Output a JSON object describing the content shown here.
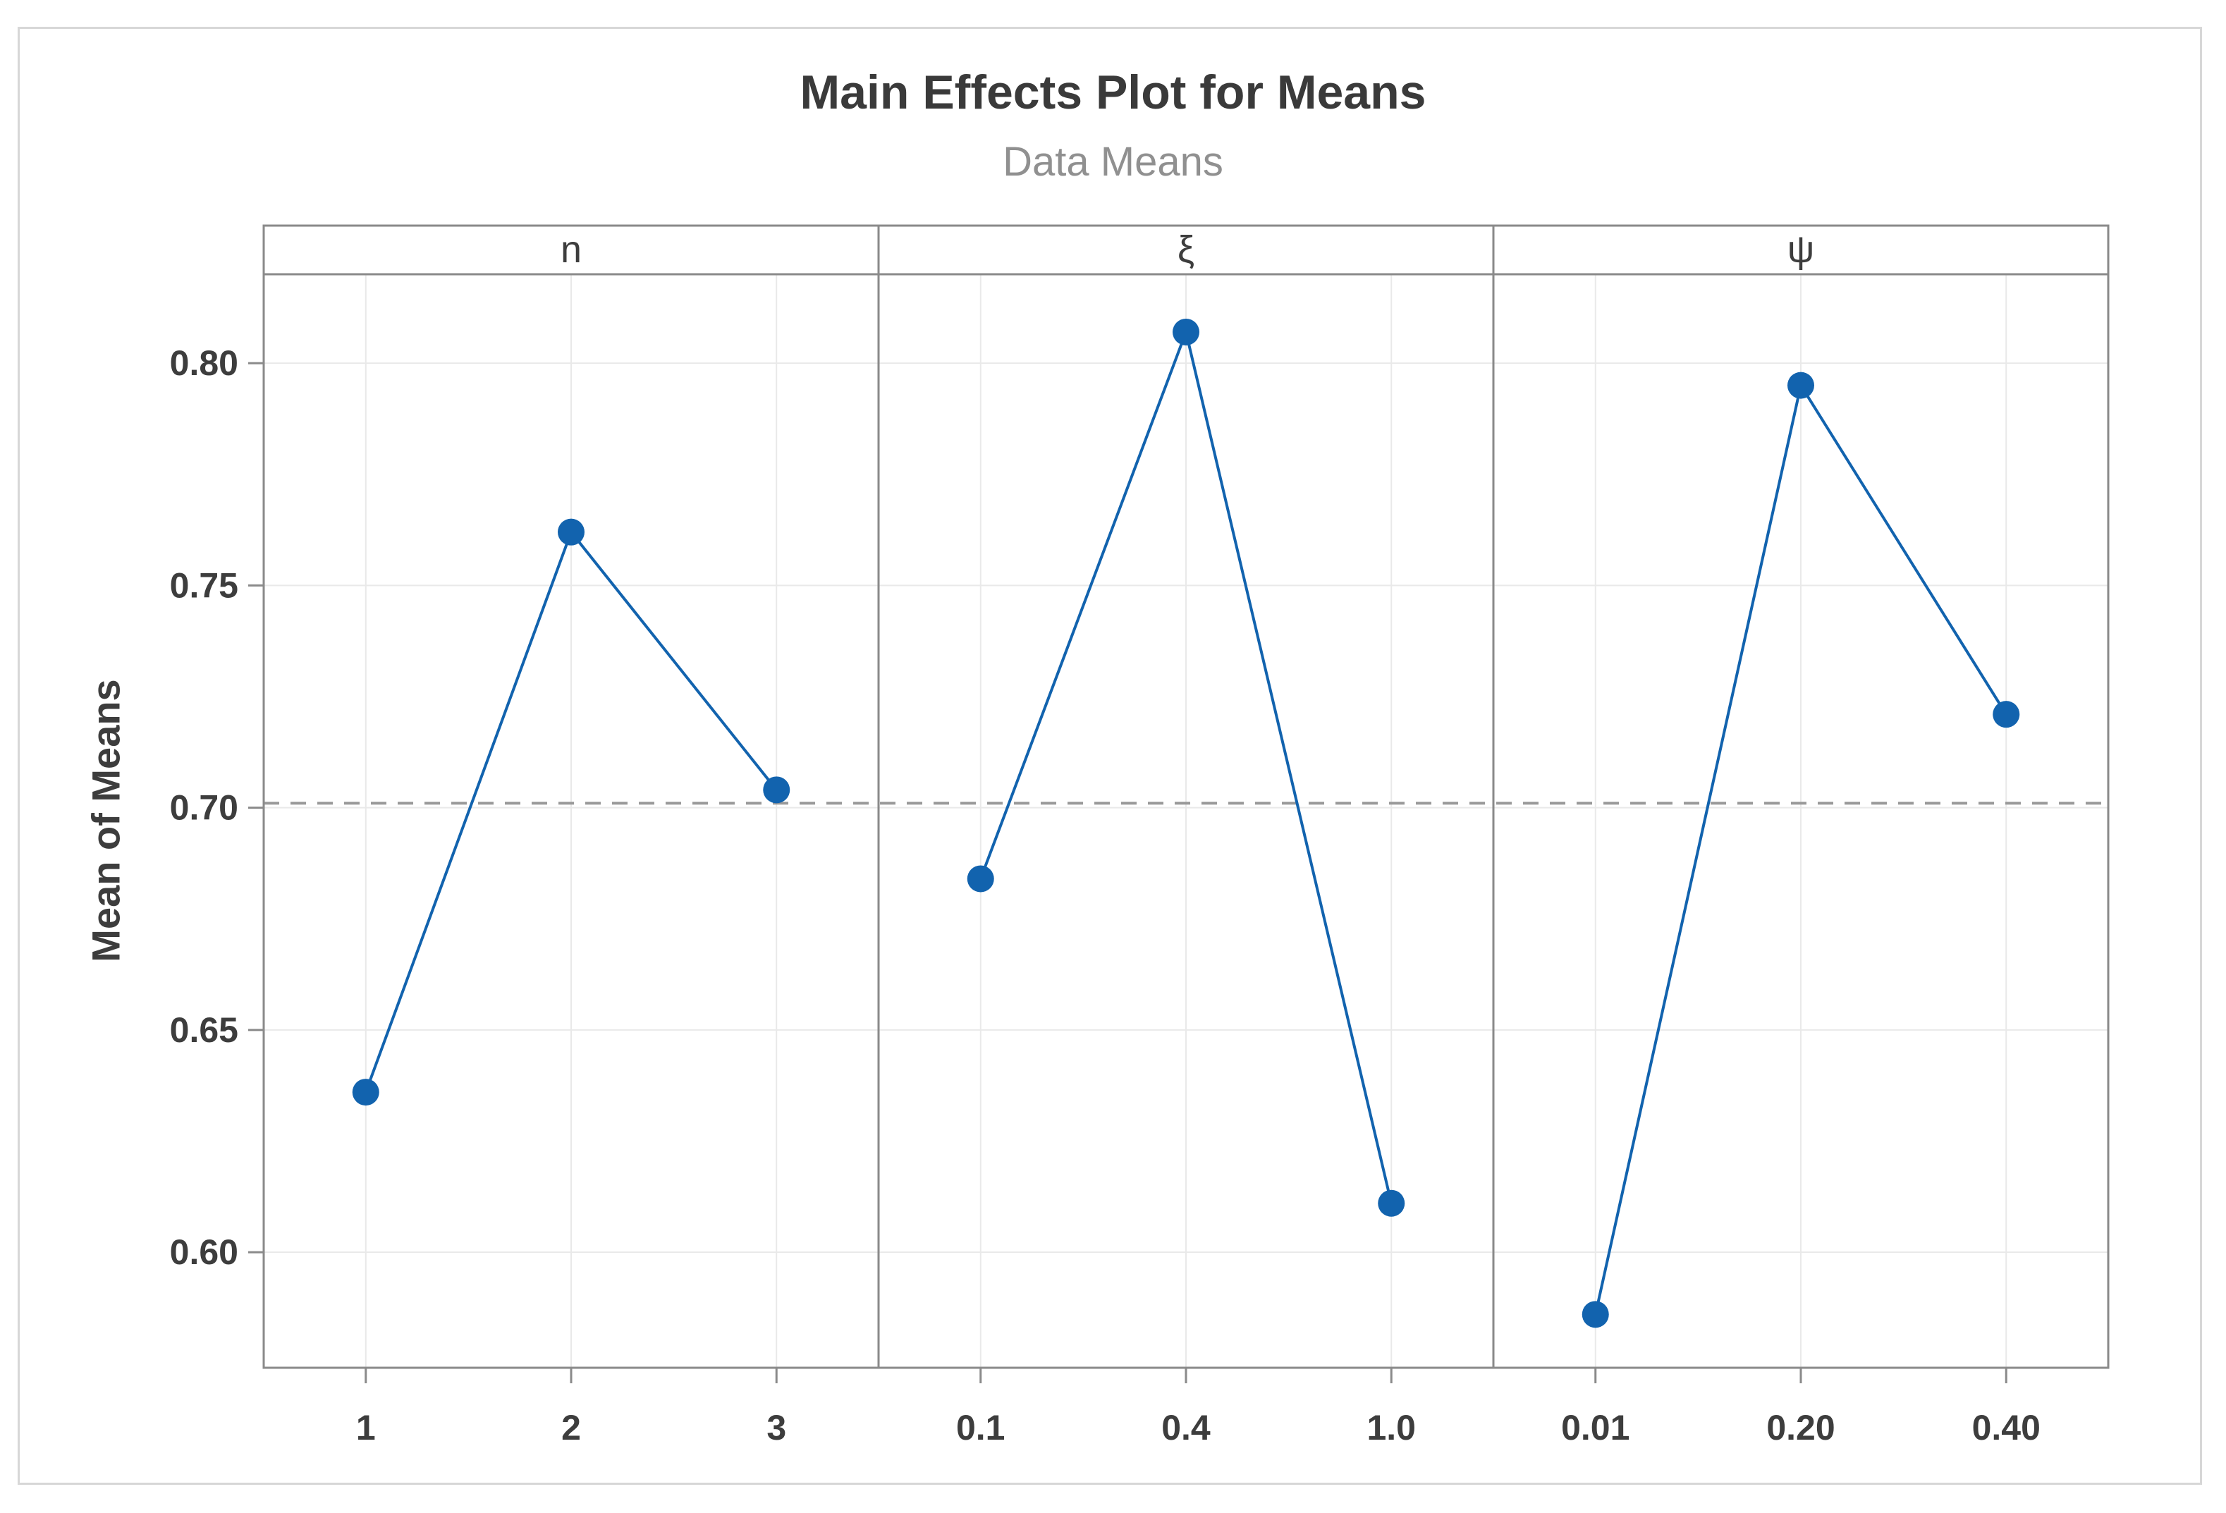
{
  "title": "Main Effects Plot for Means",
  "subtitle": "Data Means",
  "chart_data": {
    "type": "line",
    "description": "Main effects plot with three factor panels; each panel shows the mean response at each factor level, with a dashed horizontal reference line at the overall mean.",
    "ylabel": "Mean of Means",
    "ylim": [
      0.574,
      0.82
    ],
    "yticks": [
      0.6,
      0.65,
      0.7,
      0.75,
      0.8
    ],
    "ytick_labels": [
      "0.60",
      "0.65",
      "0.70",
      "0.75",
      "0.80"
    ],
    "grid": true,
    "overall_mean_reference": 0.701,
    "panels": [
      {
        "factor": "n",
        "categories": [
          "1",
          "2",
          "3"
        ],
        "values": [
          0.636,
          0.762,
          0.704
        ]
      },
      {
        "factor": "ξ",
        "categories": [
          "0.1",
          "0.4",
          "1.0"
        ],
        "values": [
          0.684,
          0.807,
          0.611
        ]
      },
      {
        "factor": "ψ",
        "categories": [
          "0.01",
          "0.20",
          "0.40"
        ],
        "values": [
          0.586,
          0.795,
          0.721
        ]
      }
    ],
    "colors": {
      "series": "#1263ae",
      "reference_line": "#999999",
      "frame": "#8a8a8a",
      "grid": "#e9e9e9",
      "title_text": "#3a3a3a",
      "subtitle_text": "#909090",
      "tick_text": "#3d3d3d"
    },
    "legend": "none"
  }
}
